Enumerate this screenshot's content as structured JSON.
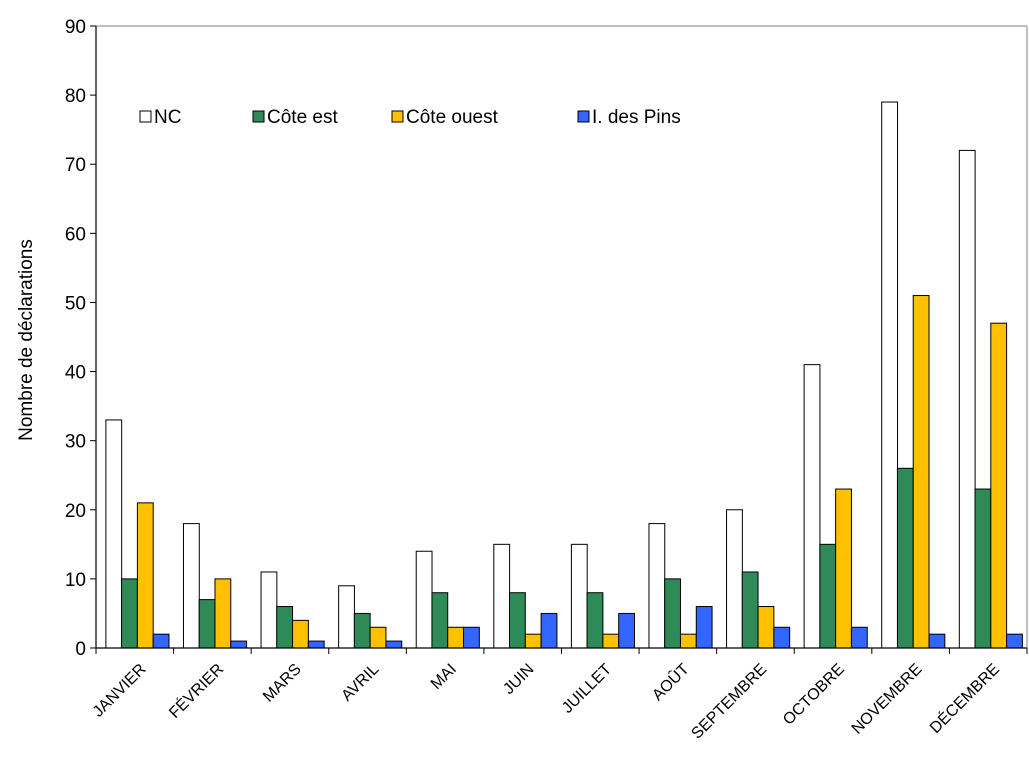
{
  "chart_data": {
    "type": "bar",
    "title": "",
    "xlabel": "",
    "ylabel": "Nombre de déclarations",
    "ylim": [
      0,
      90
    ],
    "yticks": [
      "0",
      "10",
      "20",
      "30",
      "40",
      "50",
      "60",
      "70",
      "80",
      "90"
    ],
    "grid": false,
    "legend_position": "top-left",
    "categories": [
      "JANVIER",
      "FÉVRIER",
      "MARS",
      "AVRIL",
      "MAI",
      "JUIN",
      "JUILLET",
      "AOÛT",
      "SEPTEMBRE",
      "OCTOBRE",
      "NOVEMBRE",
      "DÉCEMBRE"
    ],
    "series": [
      {
        "name": "NC",
        "color": "#ffffff",
        "values": [
          33,
          18,
          11,
          9,
          14,
          15,
          15,
          18,
          20,
          41,
          79,
          72
        ]
      },
      {
        "name": "Côte est",
        "color": "#2e8b57",
        "values": [
          10,
          7,
          6,
          5,
          8,
          8,
          8,
          10,
          11,
          15,
          26,
          23
        ]
      },
      {
        "name": "Côte ouest",
        "color": "#ffc000",
        "values": [
          21,
          10,
          4,
          3,
          3,
          2,
          2,
          2,
          6,
          23,
          51,
          47
        ]
      },
      {
        "name": "I. des Pins",
        "color": "#3366ff",
        "values": [
          2,
          1,
          1,
          1,
          3,
          5,
          5,
          6,
          3,
          3,
          2,
          2
        ]
      }
    ]
  }
}
